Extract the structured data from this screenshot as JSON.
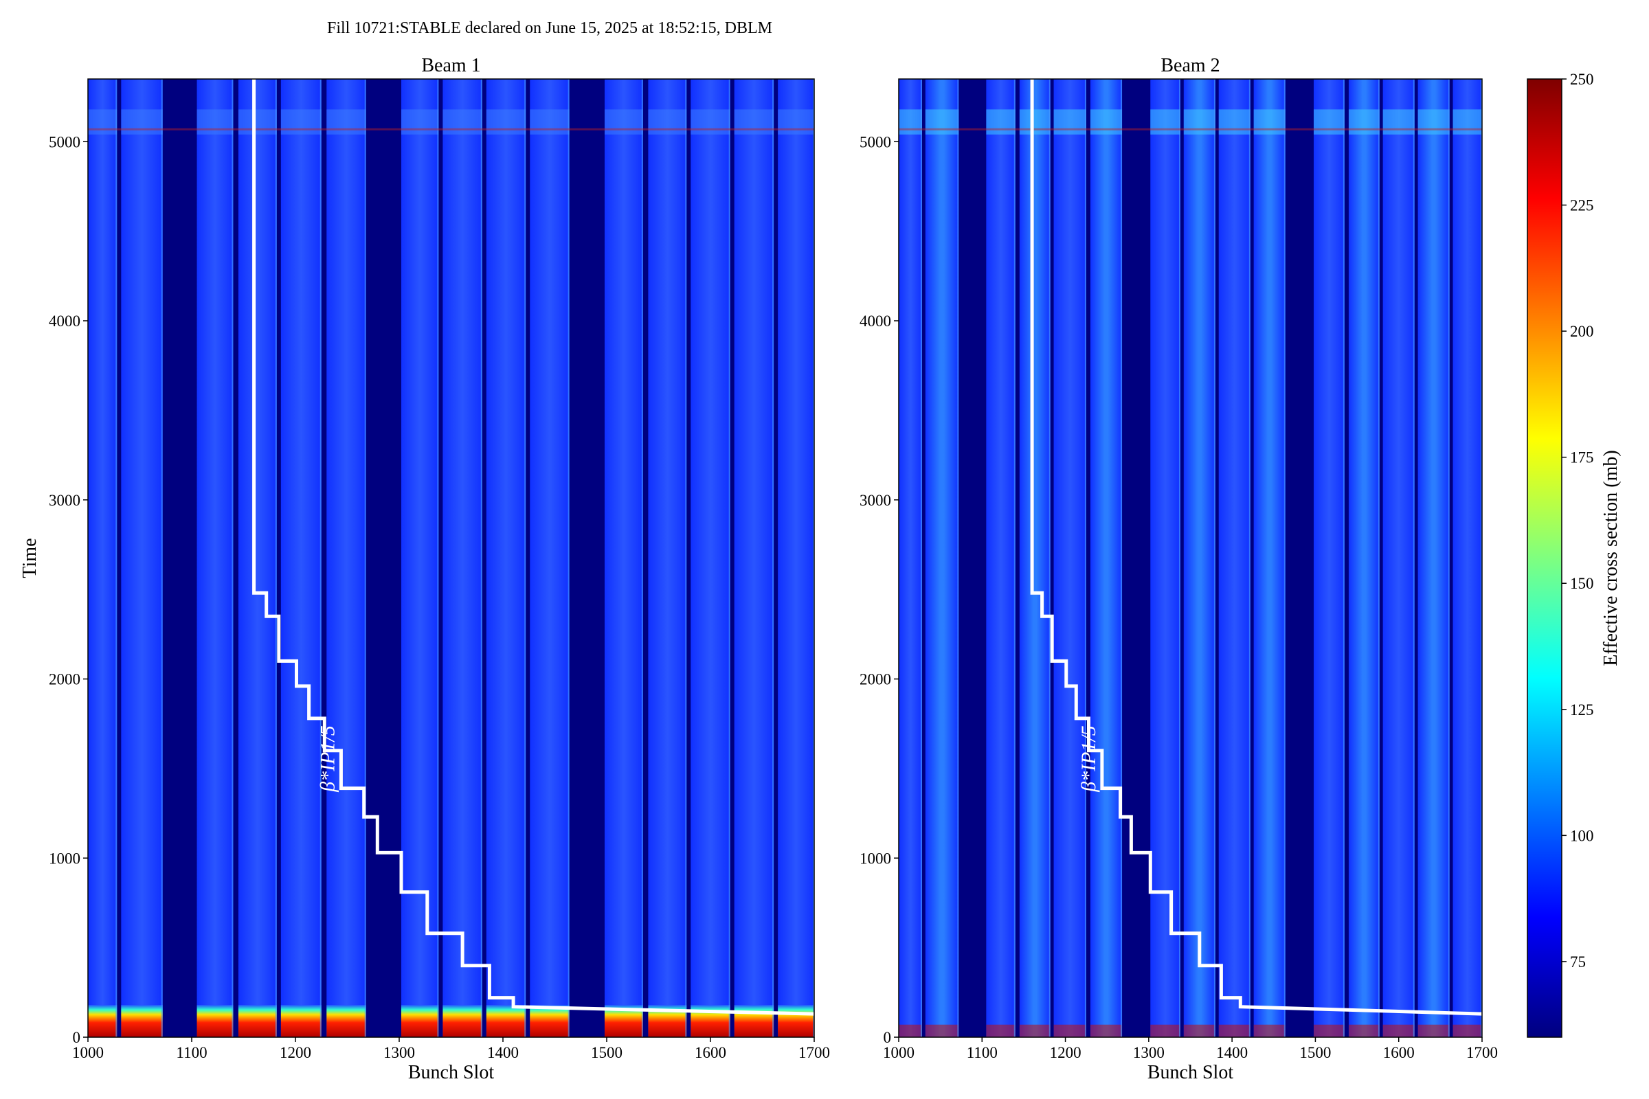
{
  "figure": {
    "suptitle": "Fill 10721:STABLE declared on June 15, 2025 at 18:52:15, DBLM"
  },
  "chart_data": [
    {
      "type": "heatmap",
      "title": "Beam 1",
      "xlabel": "Bunch Slot",
      "ylabel": "Time",
      "xlim": [
        1000,
        1700
      ],
      "ylim": [
        0,
        5350
      ],
      "xticks": [
        1000,
        1100,
        1200,
        1300,
        1400,
        1500,
        1600,
        1700
      ],
      "yticks": [
        0,
        1000,
        2000,
        3000,
        4000,
        5000
      ],
      "filled_slot_bands": [
        [
          1000,
          1028
        ],
        [
          1032,
          1072
        ],
        [
          1105,
          1140
        ],
        [
          1145,
          1182
        ],
        [
          1186,
          1225
        ],
        [
          1230,
          1268
        ],
        [
          1302,
          1338
        ],
        [
          1342,
          1380
        ],
        [
          1384,
          1422
        ],
        [
          1426,
          1464
        ],
        [
          1498,
          1535
        ],
        [
          1540,
          1577
        ],
        [
          1581,
          1619
        ],
        [
          1623,
          1661
        ],
        [
          1665,
          1700
        ]
      ],
      "annotation": "β*IP1/5",
      "beta_star_curve": {
        "x": [
          1160,
          1160,
          1172,
          1172,
          1184,
          1184,
          1201,
          1201,
          1213,
          1213,
          1228,
          1228,
          1244,
          1244,
          1266,
          1266,
          1279,
          1279,
          1302,
          1302,
          1327,
          1327,
          1361,
          1361,
          1387,
          1387,
          1410,
          1410,
          1700
        ],
        "y": [
          5350,
          2480,
          2480,
          2350,
          2350,
          2100,
          2100,
          1960,
          1960,
          1780,
          1780,
          1600,
          1600,
          1390,
          1390,
          1230,
          1230,
          1030,
          1030,
          810,
          810,
          580,
          580,
          400,
          400,
          220,
          220,
          170,
          130
        ]
      }
    },
    {
      "type": "heatmap",
      "title": "Beam 2",
      "xlabel": "Bunch Slot",
      "ylabel": "",
      "xlim": [
        1000,
        1700
      ],
      "ylim": [
        0,
        5350
      ],
      "xticks": [
        1000,
        1100,
        1200,
        1300,
        1400,
        1500,
        1600,
        1700
      ],
      "yticks": [
        0,
        1000,
        2000,
        3000,
        4000,
        5000
      ],
      "filled_slot_bands": [
        [
          1000,
          1028
        ],
        [
          1032,
          1072
        ],
        [
          1105,
          1140
        ],
        [
          1145,
          1182
        ],
        [
          1186,
          1225
        ],
        [
          1230,
          1268
        ],
        [
          1302,
          1338
        ],
        [
          1342,
          1380
        ],
        [
          1384,
          1422
        ],
        [
          1426,
          1464
        ],
        [
          1498,
          1535
        ],
        [
          1540,
          1577
        ],
        [
          1581,
          1619
        ],
        [
          1623,
          1661
        ],
        [
          1665,
          1700
        ]
      ],
      "annotation": "β*IP1/5",
      "beta_star_curve": {
        "x": [
          1160,
          1160,
          1172,
          1172,
          1184,
          1184,
          1201,
          1201,
          1213,
          1213,
          1228,
          1228,
          1244,
          1244,
          1266,
          1266,
          1279,
          1279,
          1302,
          1302,
          1327,
          1327,
          1361,
          1361,
          1387,
          1387,
          1410,
          1410,
          1700
        ],
        "y": [
          5350,
          2480,
          2480,
          2350,
          2350,
          2100,
          2100,
          1960,
          1960,
          1780,
          1780,
          1600,
          1600,
          1390,
          1390,
          1230,
          1230,
          1030,
          1030,
          810,
          810,
          580,
          580,
          400,
          400,
          220,
          220,
          170,
          130
        ]
      }
    }
  ],
  "colorbar": {
    "label": "Effective cross section (mb)",
    "range": [
      60,
      250
    ],
    "ticks": [
      75,
      100,
      125,
      150,
      175,
      200,
      225,
      250
    ],
    "colormap": "jet",
    "colors": [
      "#00007f",
      "#0000ff",
      "#007fff",
      "#00ffff",
      "#7fff7f",
      "#ffff00",
      "#ff7f00",
      "#ff0000",
      "#7f0000"
    ]
  },
  "colors": {
    "empty_slot": "#00007f",
    "filled_slot": "#1a2eff",
    "curve": "#ffffff"
  }
}
